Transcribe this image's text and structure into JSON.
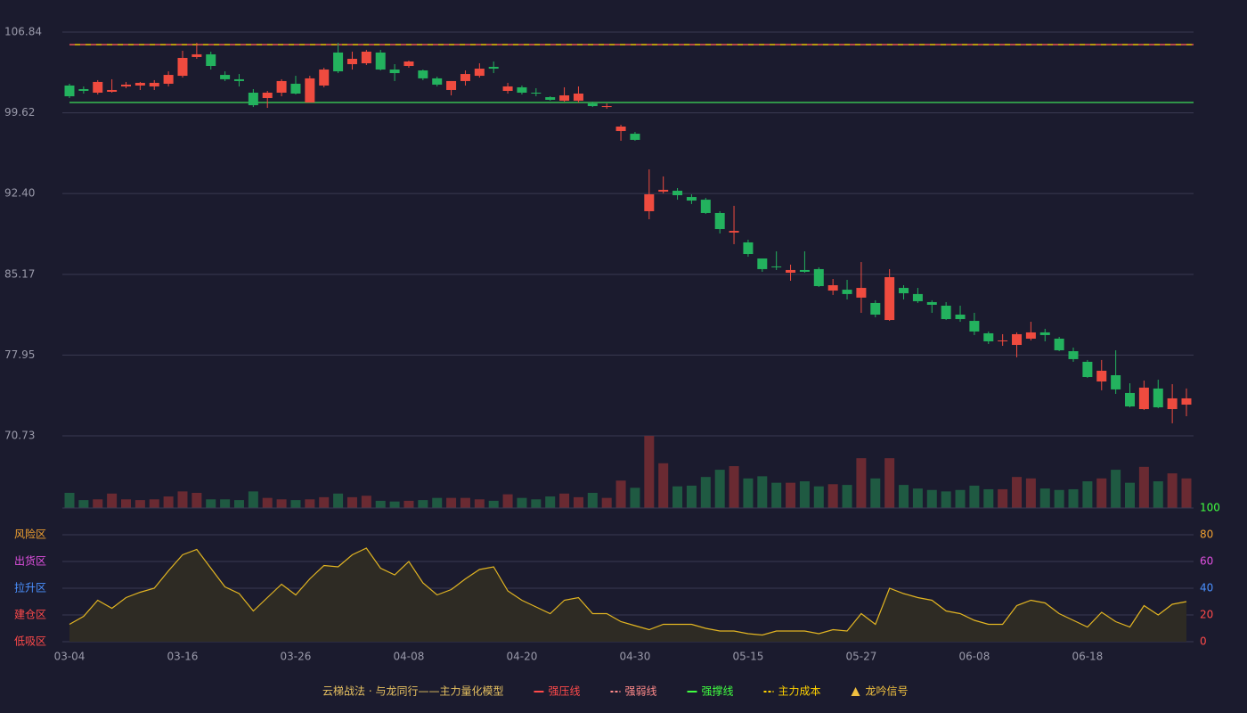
{
  "chart_data": {
    "type": "candlestick",
    "title": "云梯战法 · 与龙同行——主力量化模型",
    "categories": [
      "03-04",
      null,
      null,
      null,
      null,
      null,
      null,
      null,
      "03-16",
      null,
      null,
      null,
      null,
      null,
      null,
      null,
      "03-26",
      null,
      null,
      null,
      null,
      null,
      null,
      null,
      "04-08",
      null,
      null,
      null,
      null,
      null,
      null,
      null,
      "04-20",
      null,
      null,
      null,
      null,
      null,
      null,
      null,
      "04-30",
      null,
      null,
      null,
      null,
      null,
      null,
      null,
      "05-15",
      null,
      null,
      null,
      null,
      null,
      null,
      null,
      "05-27",
      null,
      null,
      null,
      null,
      null,
      null,
      null,
      "06-08",
      null,
      null,
      null,
      null,
      null,
      null,
      null,
      "06-18",
      null,
      null,
      null,
      null,
      null,
      null,
      null
    ],
    "open": [
      102.06,
      101.74,
      101.42,
      101.5,
      101.98,
      102.06,
      101.98,
      102.22,
      102.93,
      104.61,
      104.85,
      103.01,
      102.62,
      101.42,
      100.94,
      101.42,
      102.22,
      100.54,
      102.06,
      105.01,
      103.97,
      104.05,
      105.01,
      103.49,
      103.81,
      103.41,
      102.7,
      101.66,
      102.46,
      102.93,
      103.73,
      101.58,
      101.9,
      101.42,
      101.02,
      100.7,
      100.7,
      100.46,
      100.14,
      97.99,
      97.75,
      90.82,
      92.57,
      92.65,
      92.09,
      91.85,
      90.66,
      88.91,
      88.03,
      86.59,
      85.88,
      85.32,
      85.56,
      85.64,
      83.72,
      83.8,
      83.09,
      82.61,
      81.09,
      83.96,
      83.41,
      82.69,
      82.37,
      81.57,
      81.01,
      79.9,
      79.18,
      78.86,
      79.42,
      79.98,
      79.42,
      78.3,
      77.35,
      75.59,
      76.15,
      74.56,
      73.12,
      74.96,
      73.12,
      73.52
    ],
    "high": [
      102.22,
      101.98,
      102.54,
      102.62,
      102.38,
      102.38,
      102.54,
      103.33,
      105.17,
      105.88,
      105.09,
      103.33,
      103.09,
      101.74,
      101.58,
      102.62,
      102.93,
      102.93,
      103.65,
      105.88,
      105.09,
      105.25,
      105.25,
      103.97,
      104.29,
      103.49,
      102.85,
      102.46,
      103.41,
      104.05,
      104.21,
      102.3,
      102.06,
      101.82,
      101.1,
      101.9,
      101.98,
      100.62,
      100.46,
      98.55,
      97.91,
      94.56,
      93.93,
      92.89,
      92.33,
      92.01,
      90.82,
      91.3,
      88.27,
      86.59,
      87.23,
      86.04,
      87.23,
      85.8,
      84.76,
      84.68,
      86.27,
      82.85,
      85.64,
      84.2,
      83.96,
      82.85,
      82.69,
      82.37,
      81.73,
      80.06,
      79.82,
      79.98,
      80.93,
      80.3,
      79.58,
      78.62,
      77.51,
      77.51,
      78.38,
      75.43,
      75.67,
      75.75,
      75.35,
      74.96
    ],
    "low": [
      100.94,
      101.34,
      101.26,
      101.42,
      101.82,
      101.66,
      101.66,
      101.98,
      102.77,
      104.45,
      103.49,
      102.46,
      101.98,
      100.14,
      100.06,
      101.1,
      101.26,
      100.54,
      101.9,
      103.17,
      103.49,
      103.89,
      103.41,
      102.46,
      103.65,
      102.54,
      101.98,
      101.18,
      102.06,
      102.77,
      103.17,
      101.34,
      101.26,
      101.1,
      100.7,
      100.62,
      100.54,
      100.14,
      99.98,
      97.12,
      97.12,
      90.1,
      92.41,
      91.85,
      91.46,
      90.58,
      88.83,
      87.87,
      86.75,
      85.4,
      85.56,
      84.6,
      85.32,
      84.04,
      83.33,
      82.93,
      81.73,
      81.33,
      81.01,
      82.93,
      82.61,
      81.73,
      81.09,
      80.93,
      79.74,
      78.94,
      78.78,
      77.75,
      79.26,
      79.18,
      78.3,
      77.35,
      75.91,
      74.8,
      74.48,
      73.28,
      73.04,
      73.2,
      71.85,
      72.48
    ],
    "close": [
      101.1,
      101.58,
      102.38,
      101.66,
      102.14,
      102.3,
      102.3,
      103.01,
      104.53,
      104.85,
      103.81,
      102.62,
      102.46,
      100.3,
      101.42,
      102.46,
      101.34,
      102.7,
      103.49,
      103.33,
      104.45,
      105.09,
      103.49,
      103.17,
      104.21,
      102.7,
      102.14,
      102.46,
      103.09,
      103.57,
      103.57,
      101.98,
      101.42,
      101.34,
      100.78,
      101.18,
      101.34,
      100.22,
      100.22,
      98.39,
      97.2,
      92.33,
      92.73,
      92.25,
      91.77,
      90.66,
      89.22,
      89.06,
      86.99,
      85.64,
      85.8,
      85.56,
      85.4,
      84.12,
      84.2,
      83.41,
      83.96,
      81.57,
      84.92,
      83.48,
      82.77,
      82.45,
      81.17,
      81.17,
      80.06,
      79.18,
      79.26,
      79.82,
      79.98,
      79.74,
      78.38,
      77.59,
      75.99,
      76.55,
      74.88,
      73.36,
      75.04,
      73.28,
      74.08,
      74.08
    ],
    "up_color": "#ef4b3f",
    "down_color": "#23b25e",
    "ylim": [
      70.73,
      106.84
    ],
    "yticks": [
      70.73,
      77.95,
      85.17,
      {
        "value": 92.4,
        "label": "92.40"
      },
      99.62,
      106.84
    ],
    "grid": true,
    "levels": [
      {
        "value": 105.72,
        "color": "#ff5a5a",
        "dash": true
      },
      {
        "value": 105.72,
        "color": "#ffd200",
        "dash": true
      },
      {
        "value": 100.54,
        "color": "#3ddc5a",
        "dash": false
      }
    ],
    "volume": {
      "ylim": [
        0,
        100
      ],
      "up_color": "#6a2a32",
      "down_color": "#1f5a42",
      "values": [
        21,
        11,
        12,
        20,
        12,
        11,
        12,
        16,
        23,
        21,
        12,
        12,
        11,
        23,
        14,
        12,
        11,
        12,
        15,
        20,
        15,
        17,
        10,
        9,
        10,
        11,
        14,
        14,
        14,
        12,
        10,
        19,
        14,
        12,
        16,
        20,
        15,
        21,
        14,
        38,
        28,
        100,
        62,
        30,
        31,
        43,
        53,
        58,
        41,
        44,
        35,
        35,
        37,
        30,
        33,
        32,
        69,
        41,
        69,
        32,
        27,
        25,
        23,
        25,
        31,
        26,
        26,
        43,
        41,
        27,
        25,
        26,
        37,
        41,
        53,
        35,
        57,
        37,
        48,
        41
      ]
    },
    "indicator": {
      "type": "area",
      "color": "#e2b522",
      "fill": "#2e2b24",
      "ylim": [
        0,
        100
      ],
      "yticks": [
        0,
        20,
        40,
        60,
        80,
        100
      ],
      "tick_colors": [
        "#ff4a4a",
        "#ff4a4a",
        "#4a90ff",
        "#e050e0",
        "#f0a030",
        "#40ff40"
      ],
      "zones": [
        {
          "label": "风险区",
          "value": 80,
          "color": "#f0a030"
        },
        {
          "label": "出货区",
          "value": 60,
          "color": "#e050e0"
        },
        {
          "label": "拉升区",
          "value": 40,
          "color": "#4a90ff"
        },
        {
          "label": "建仓区",
          "value": 20,
          "color": "#ff4a4a"
        },
        {
          "label": "低吸区",
          "value": 0,
          "color": "#ff4a4a"
        }
      ],
      "values": [
        13,
        19,
        31,
        25,
        33,
        37,
        40,
        53,
        65,
        69,
        55,
        41,
        36,
        23,
        33,
        43,
        35,
        47,
        57,
        56,
        65,
        70,
        55,
        50,
        60,
        44,
        35,
        39,
        47,
        54,
        56,
        38,
        31,
        26,
        21,
        31,
        33,
        21,
        21,
        15,
        12,
        9,
        13,
        13,
        13,
        10,
        8,
        8,
        6,
        5,
        8,
        8,
        8,
        6,
        9,
        8,
        21,
        13,
        40,
        36,
        33,
        31,
        23,
        21,
        16,
        13,
        13,
        27,
        31,
        29,
        21,
        16,
        11,
        22,
        15,
        11,
        27,
        20,
        28,
        30
      ]
    },
    "title_color": "#e6c060",
    "legend": [
      {
        "name": "强压线",
        "color": "#ff4a4a",
        "symbol": "line"
      },
      {
        "name": "强弱线",
        "color": "#ff8a8a",
        "symbol": "dash"
      },
      {
        "name": "强撑线",
        "color": "#40ff40",
        "symbol": "line"
      },
      {
        "name": "主力成本",
        "color": "#ffd200",
        "symbol": "dash"
      },
      {
        "name": "龙吟信号",
        "color": "#f0c040",
        "symbol": "triangle"
      }
    ]
  }
}
